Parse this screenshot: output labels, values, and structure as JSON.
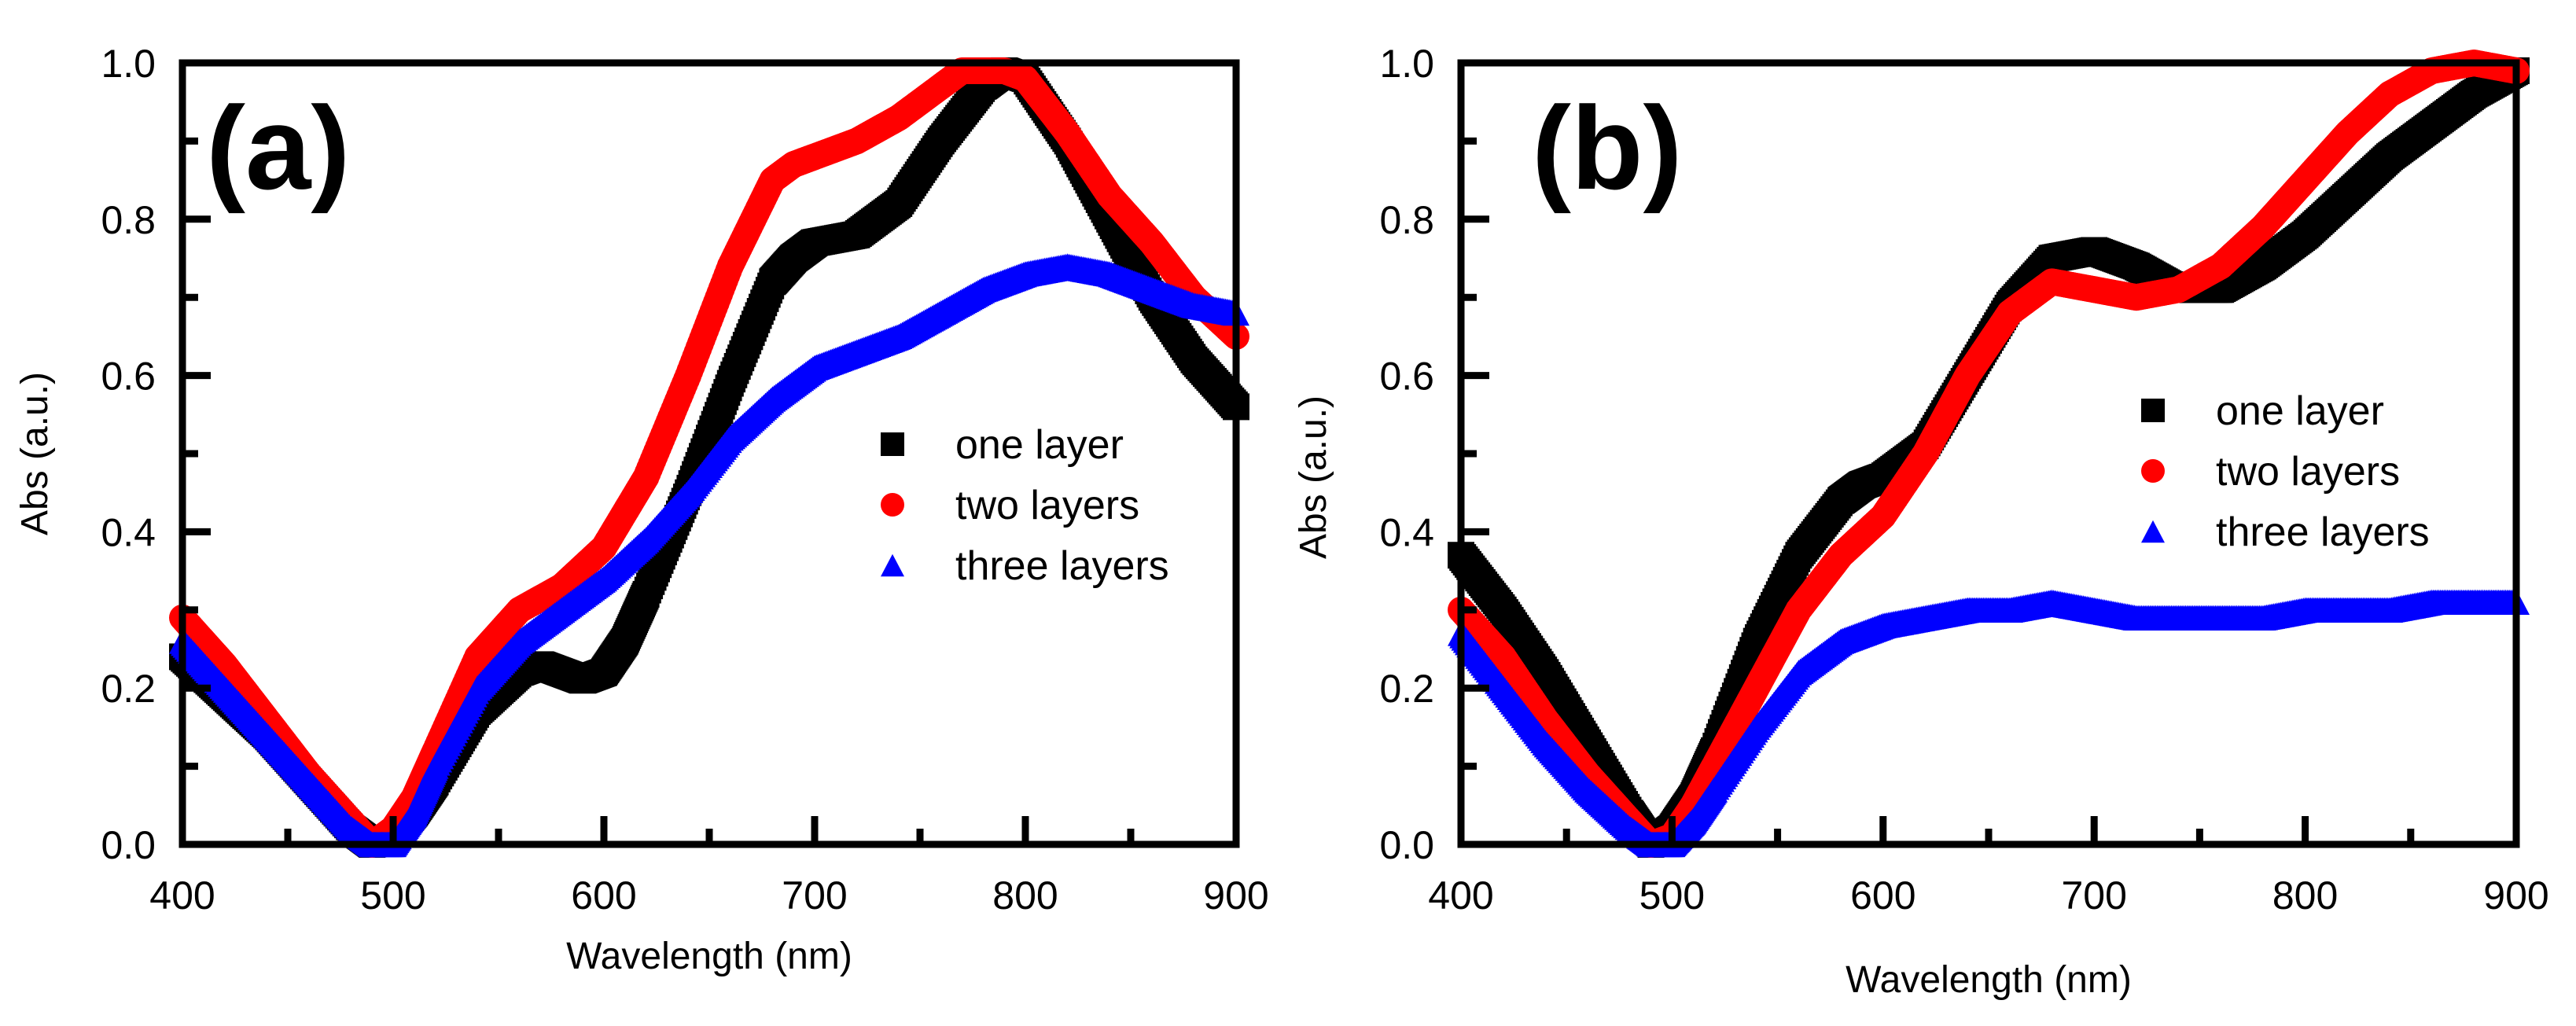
{
  "chart_data": [
    {
      "type": "scatter",
      "panel_label": "(a)",
      "xlabel": "Wavelength (nm)",
      "ylabel": "Abs (a.u.)",
      "xlim": [
        400,
        900
      ],
      "ylim": [
        0,
        1.0
      ],
      "x_ticks": [
        400,
        500,
        600,
        700,
        800,
        900
      ],
      "x_tick_labels": [
        "400",
        "500",
        "600",
        "700",
        "800",
        "900"
      ],
      "y_ticks": [
        0,
        0.2,
        0.4,
        0.6,
        0.8,
        1.0
      ],
      "y_tick_labels": [
        "0.0",
        "0.2",
        "0.4",
        "0.6",
        "0.8",
        "1.0"
      ],
      "legend_position": "center-right",
      "series": [
        {
          "name": "one layer",
          "color": "#000000",
          "marker": "square",
          "x": [
            400,
            420,
            440,
            460,
            480,
            490,
            500,
            510,
            520,
            540,
            560,
            570,
            580,
            590,
            600,
            610,
            620,
            640,
            660,
            680,
            690,
            700,
            720,
            740,
            760,
            780,
            790,
            800,
            820,
            840,
            860,
            880,
            900
          ],
          "y": [
            0.24,
            0.19,
            0.14,
            0.08,
            0.02,
            0.0,
            0.01,
            0.04,
            0.08,
            0.17,
            0.22,
            0.23,
            0.22,
            0.21,
            0.22,
            0.26,
            0.32,
            0.45,
            0.59,
            0.72,
            0.75,
            0.77,
            0.78,
            0.82,
            0.9,
            0.97,
            0.99,
            0.98,
            0.9,
            0.8,
            0.7,
            0.62,
            0.56
          ]
        },
        {
          "name": "two layers",
          "color": "#ff0000",
          "marker": "circle",
          "x": [
            400,
            420,
            440,
            460,
            480,
            490,
            500,
            510,
            520,
            540,
            560,
            580,
            600,
            620,
            640,
            660,
            680,
            690,
            700,
            720,
            740,
            760,
            770,
            780,
            790,
            800,
            820,
            840,
            860,
            880,
            900
          ],
          "y": [
            0.29,
            0.23,
            0.16,
            0.09,
            0.03,
            0.0,
            0.02,
            0.06,
            0.12,
            0.24,
            0.3,
            0.33,
            0.38,
            0.47,
            0.6,
            0.74,
            0.85,
            0.87,
            0.88,
            0.9,
            0.93,
            0.97,
            0.99,
            0.99,
            0.99,
            0.98,
            0.91,
            0.83,
            0.77,
            0.7,
            0.65
          ]
        },
        {
          "name": "three layers",
          "color": "#0000ff",
          "marker": "triangle",
          "x": [
            400,
            420,
            440,
            460,
            480,
            490,
            500,
            510,
            520,
            540,
            560,
            580,
            600,
            620,
            640,
            660,
            680,
            700,
            720,
            740,
            760,
            780,
            800,
            820,
            840,
            860,
            880,
            900
          ],
          "y": [
            0.26,
            0.2,
            0.14,
            0.08,
            0.02,
            0.0,
            0.0,
            0.04,
            0.1,
            0.2,
            0.26,
            0.3,
            0.34,
            0.39,
            0.45,
            0.52,
            0.57,
            0.61,
            0.63,
            0.65,
            0.68,
            0.71,
            0.73,
            0.74,
            0.73,
            0.71,
            0.69,
            0.68
          ]
        }
      ]
    },
    {
      "type": "scatter",
      "panel_label": "(b)",
      "xlabel": "Wavelength (nm)",
      "ylabel": "Abs (a.u.)",
      "xlim": [
        400,
        900
      ],
      "ylim": [
        0,
        1.0
      ],
      "x_ticks": [
        400,
        500,
        600,
        700,
        800,
        900
      ],
      "x_tick_labels": [
        "400",
        "500",
        "600",
        "700",
        "800",
        "900"
      ],
      "y_ticks": [
        0,
        0.2,
        0.4,
        0.6,
        0.8,
        1.0
      ],
      "y_tick_labels": [
        "0.0",
        "0.2",
        "0.4",
        "0.6",
        "0.8",
        "1.0"
      ],
      "legend_position": "center-right",
      "series": [
        {
          "name": "one layer",
          "color": "#000000",
          "marker": "square",
          "x": [
            400,
            420,
            440,
            460,
            480,
            490,
            500,
            510,
            520,
            540,
            560,
            580,
            590,
            600,
            620,
            640,
            660,
            680,
            700,
            720,
            740,
            760,
            780,
            800,
            820,
            840,
            860,
            880,
            900
          ],
          "y": [
            0.37,
            0.3,
            0.22,
            0.13,
            0.04,
            0.0,
            0.02,
            0.06,
            0.12,
            0.26,
            0.37,
            0.44,
            0.46,
            0.47,
            0.51,
            0.6,
            0.69,
            0.75,
            0.76,
            0.74,
            0.71,
            0.71,
            0.74,
            0.78,
            0.83,
            0.88,
            0.92,
            0.96,
            0.99
          ]
        },
        {
          "name": "two layers",
          "color": "#ff0000",
          "marker": "circle",
          "x": [
            400,
            420,
            440,
            460,
            480,
            490,
            500,
            510,
            520,
            540,
            560,
            580,
            600,
            620,
            640,
            660,
            680,
            700,
            720,
            740,
            760,
            780,
            800,
            820,
            840,
            860,
            880,
            900
          ],
          "y": [
            0.3,
            0.24,
            0.16,
            0.09,
            0.03,
            0.0,
            0.01,
            0.05,
            0.1,
            0.2,
            0.3,
            0.37,
            0.42,
            0.5,
            0.6,
            0.68,
            0.72,
            0.71,
            0.7,
            0.71,
            0.74,
            0.79,
            0.85,
            0.91,
            0.96,
            0.99,
            1.0,
            0.99
          ]
        },
        {
          "name": "three layers",
          "color": "#0000ff",
          "marker": "triangle",
          "x": [
            400,
            420,
            440,
            460,
            480,
            490,
            500,
            510,
            520,
            540,
            560,
            580,
            600,
            620,
            640,
            660,
            680,
            700,
            720,
            740,
            760,
            780,
            800,
            820,
            840,
            860,
            880,
            900
          ],
          "y": [
            0.27,
            0.2,
            0.13,
            0.07,
            0.02,
            0.0,
            0.0,
            0.03,
            0.07,
            0.15,
            0.22,
            0.26,
            0.28,
            0.29,
            0.3,
            0.3,
            0.31,
            0.3,
            0.29,
            0.29,
            0.29,
            0.29,
            0.3,
            0.3,
            0.3,
            0.31,
            0.31,
            0.31
          ]
        }
      ]
    }
  ]
}
